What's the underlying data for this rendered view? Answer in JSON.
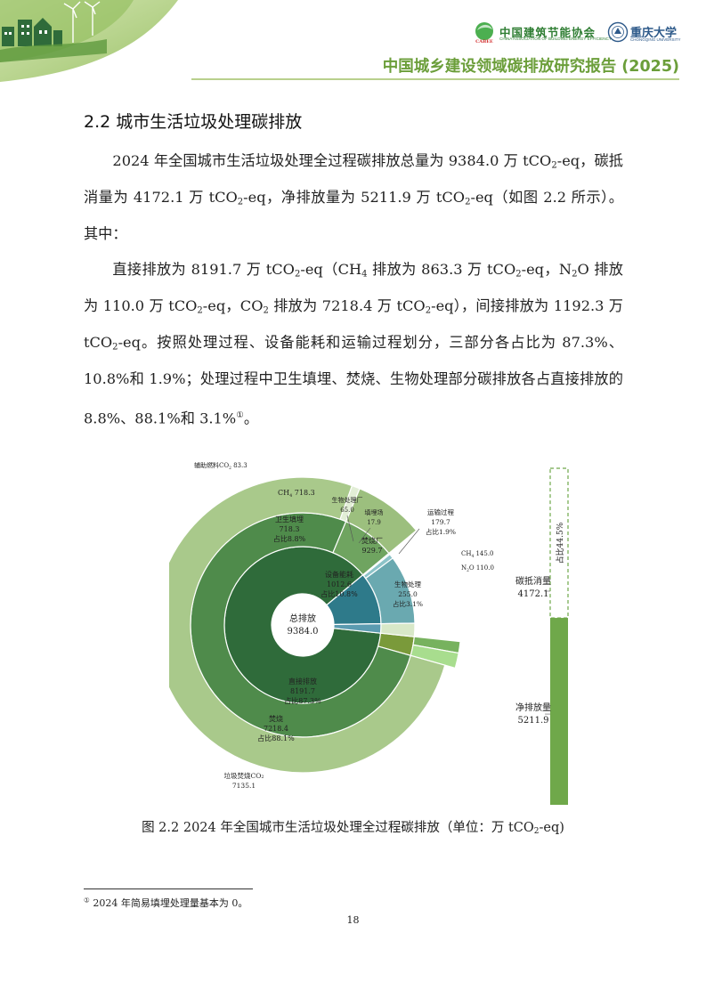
{
  "header": {
    "org_cn": "中国建筑节能协会",
    "org_en": "CHINA ASSOCIATION OF BUILDING ENERGY EFFICIENCY",
    "org_badge": "CABEE",
    "univ_cn": "重庆大学",
    "univ_en": "CHONGQING UNIVERSITY",
    "report_title": "中国城乡建设领域碳排放研究报告 (2025)"
  },
  "section": {
    "title": "2.2 城市生活垃圾处理碳排放"
  },
  "paragraph1": {
    "s1": "2024 年全国城市生活垃圾处理全过程碳排放总量为 9384.0 万 tCO",
    "s2": "-eq，碳抵消量为 4172.1 万 tCO",
    "s3": "-eq，净排放量为 5211.9 万 tCO",
    "s4": "-eq（如图 2.2 所示）。其中："
  },
  "paragraph2": {
    "s1": "直接排放为 8191.7 万 tCO",
    "s2": "-eq（CH",
    "s3": " 排放为 863.3 万 tCO",
    "s4": "-eq，N",
    "s5": "O 排放为 110.0 万 tCO",
    "s6": "-eq，CO",
    "s7": " 排放为 7218.4 万 tCO",
    "s8": "-eq），间接排放为 1192.3 万 tCO",
    "s9": "-eq。按照处理过程、设备能耗和运输过程划分，三部分各占比为 87.3%、10.8%和 1.9%；处理过程中卫生填埋、焚烧、生物处理部分碳排放各占直接排放的 8.8%、88.1%和 3.1%",
    "fn_mark": "①",
    "s10": "。"
  },
  "sub2": "2",
  "sub4": "4",
  "chart_data": {
    "type": "sunburst",
    "center": {
      "label": "总排放",
      "value": "9384.0"
    },
    "ring1": [
      {
        "label": "直接排放",
        "value": "8191.7",
        "share": "占比87.3%",
        "amount": 8191.7,
        "color": "#2f6b3a"
      },
      {
        "label": "设备能耗",
        "value": "1012.6",
        "share": "占比10.8%",
        "amount": 1012.6,
        "color": "#2e7a8a"
      },
      {
        "label": "运输过程",
        "value": "179.7",
        "share": "占比1.9%",
        "amount": 179.7,
        "color": "#5b9bb0"
      }
    ],
    "ring2": [
      {
        "label": "焚烧",
        "value": "7218.4",
        "share": "占比88.1%",
        "amount": 7218.4,
        "color": "#4f8b4b"
      },
      {
        "label": "卫生填埋",
        "value": "718.3",
        "share": "占比8.8%",
        "amount": 718.3,
        "color": "#6fa460"
      },
      {
        "label": "生物处理",
        "value": "255.0",
        "share": "占比3.1%",
        "amount": 255.0,
        "color": "#7a9a3a"
      },
      {
        "label": "焚烧厂",
        "value": "929.7",
        "amount": 929.7,
        "color": "#6aa9b0"
      },
      {
        "label": "生物处理厂",
        "value": "65.0",
        "amount": 65.0,
        "color": "#8cc3c8"
      },
      {
        "label": "填埋场",
        "value": "17.9",
        "amount": 17.9,
        "color": "#a8d2d6"
      },
      {
        "label": "",
        "value": "",
        "amount": 179.7,
        "color": "#d8e8c8"
      }
    ],
    "ring3": [
      {
        "label": "垃圾焚烧CO",
        "sub": "2",
        "value": "7135.1",
        "amount": 7135.1,
        "color": "#a9c98b"
      },
      {
        "label": "辅助燃料CO",
        "sub": "2",
        "value": "83.3",
        "amount": 83.3,
        "color": "#e2eed6"
      },
      {
        "label": "CH",
        "sub": "4",
        "value": "718.3",
        "amount": 718.3,
        "color": "#9cbf7e"
      },
      {
        "label": "CH",
        "sub": "4",
        "value": "145.0",
        "amount": 145.0,
        "color": "#a8dd8e"
      },
      {
        "label": "N",
        "sub": "2",
        "suffix": "O",
        "value": "110.0",
        "amount": 110.0,
        "color": "#77b25e"
      }
    ],
    "bar": {
      "offset": {
        "label": "碳抵消量",
        "value": "4172.1",
        "amount": 4172.1
      },
      "net": {
        "label": "净排放量",
        "value": "5211.9",
        "amount": 5211.9
      },
      "offset_share": "占比44.5%",
      "color": "#6fa84a"
    }
  },
  "caption": {
    "s1": "图 2.2 2024 年全国城市生活垃圾处理全过程碳排放（单位：万 tCO",
    "s2": "-eq)"
  },
  "footnote": {
    "mark": "①",
    "text": " 2024 年简易填埋处理量基本为 0。"
  },
  "page_number": "18"
}
